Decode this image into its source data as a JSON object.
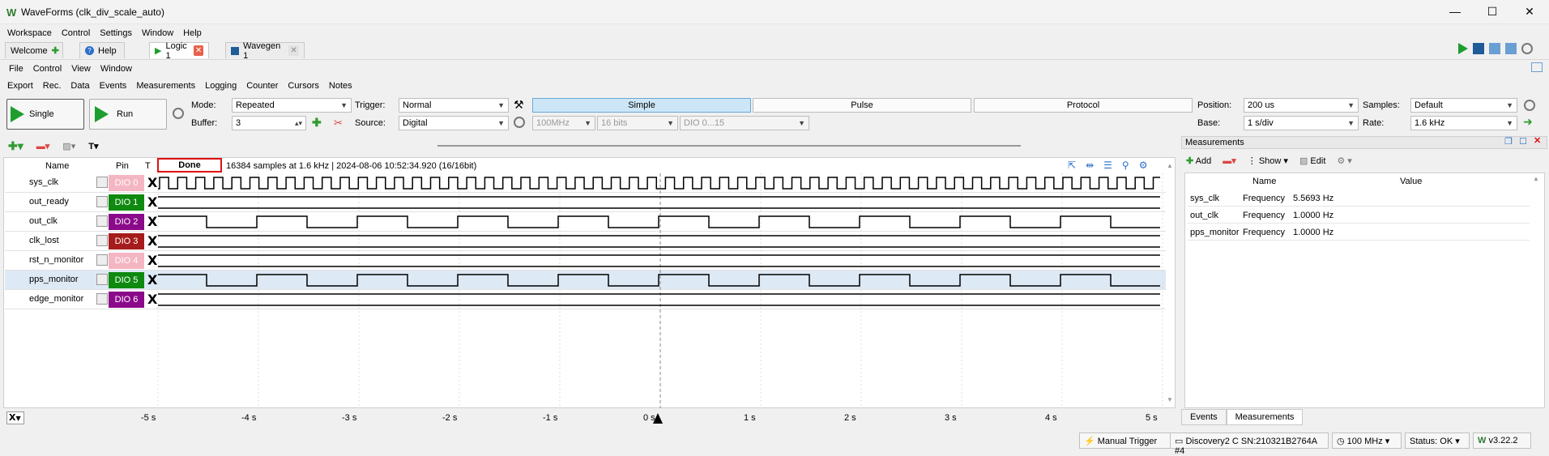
{
  "window": {
    "title": "WaveForms (clk_div_scale_auto)",
    "minimize": "—",
    "maximize": "☐",
    "close": "✕"
  },
  "top_menu": [
    "Workspace",
    "Control",
    "Settings",
    "Window",
    "Help"
  ],
  "tabs": [
    {
      "label": "Welcome"
    },
    {
      "label": "Help"
    },
    {
      "label": "Logic 1"
    },
    {
      "label": "Wavegen 1"
    }
  ],
  "logic_menu": [
    "File",
    "Control",
    "View",
    "Window"
  ],
  "logic_submenu": [
    "Export",
    "Rec.",
    "Data",
    "Events",
    "Measurements",
    "Logging",
    "Counter",
    "Cursors",
    "Notes"
  ],
  "toolbar": {
    "single_label": "Single",
    "run_label": "Run",
    "mode_label": "Mode:",
    "mode_value": "Repeated",
    "buffer_label": "Buffer:",
    "buffer_value": "3",
    "trigger_label": "Trigger:",
    "trigger_value": "Normal",
    "source_label": "Source:",
    "source_value": "Digital",
    "trigger_types": [
      "Simple",
      "Pulse",
      "Protocol"
    ],
    "rate_combo": "100MHz",
    "bits_combo": "16 bits",
    "dio_combo": "DIO 0...15",
    "position_label": "Position:",
    "position_value": "200 us",
    "base_label": "Base:",
    "base_value": "1 s/div",
    "samples_label": "Samples:",
    "samples_value": "Default",
    "rate_label": "Rate:",
    "rate_value": "1.6 kHz"
  },
  "channel_header": {
    "name": "Name",
    "pin": "Pin",
    "t": "T"
  },
  "acquisition": {
    "status": "Done",
    "info": "16384 samples at 1.6 kHz | 2024-08-06 10:52:34.920 (16/16bit)"
  },
  "channels": [
    {
      "name": "sys_clk",
      "pin": "DIO 0",
      "color": "#f4b6c2",
      "trigger": "X"
    },
    {
      "name": "out_ready",
      "pin": "DIO 1",
      "color": "#0f8a0f",
      "trigger": "X"
    },
    {
      "name": "out_clk",
      "pin": "DIO 2",
      "color": "#8a0a8a",
      "trigger": "X"
    },
    {
      "name": "clk_lost",
      "pin": "DIO 3",
      "color": "#a61c1c",
      "trigger": "X"
    },
    {
      "name": "rst_n_monitor",
      "pin": "DIO 4",
      "color": "#f4b6c2",
      "trigger": "X"
    },
    {
      "name": "pps_monitor",
      "pin": "DIO 5",
      "color": "#0f8a0f",
      "trigger": "X"
    },
    {
      "name": "edge_monitor",
      "pin": "DIO 6",
      "color": "#8a0a8a",
      "trigger": "X"
    }
  ],
  "time_axis": [
    "-5 s",
    "-4 s",
    "-3 s",
    "-2 s",
    "-1 s",
    "0 s",
    "1 s",
    "2 s",
    "3 s",
    "4 s",
    "5 s"
  ],
  "axis_x_label": "X",
  "measurements": {
    "title": "Measurements",
    "add_label": "Add",
    "show_label": "Show",
    "edit_label": "Edit",
    "col_name": "Name",
    "col_value": "Value",
    "rows": [
      {
        "name": "sys_clk",
        "type": "Frequency",
        "value": "5.5693 Hz"
      },
      {
        "name": "out_clk",
        "type": "Frequency",
        "value": "1.0000 Hz"
      },
      {
        "name": "pps_monitor",
        "type": "Frequency",
        "value": "1.0000 Hz"
      }
    ],
    "bottom_tabs": [
      "Events",
      "Measurements"
    ]
  },
  "statusbar": {
    "manual_trigger": "Manual Trigger",
    "device": "Discovery2 C SN:210321B2764A #4",
    "clock": "100 MHz",
    "status": "Status: OK",
    "version": "v3.22.2"
  }
}
